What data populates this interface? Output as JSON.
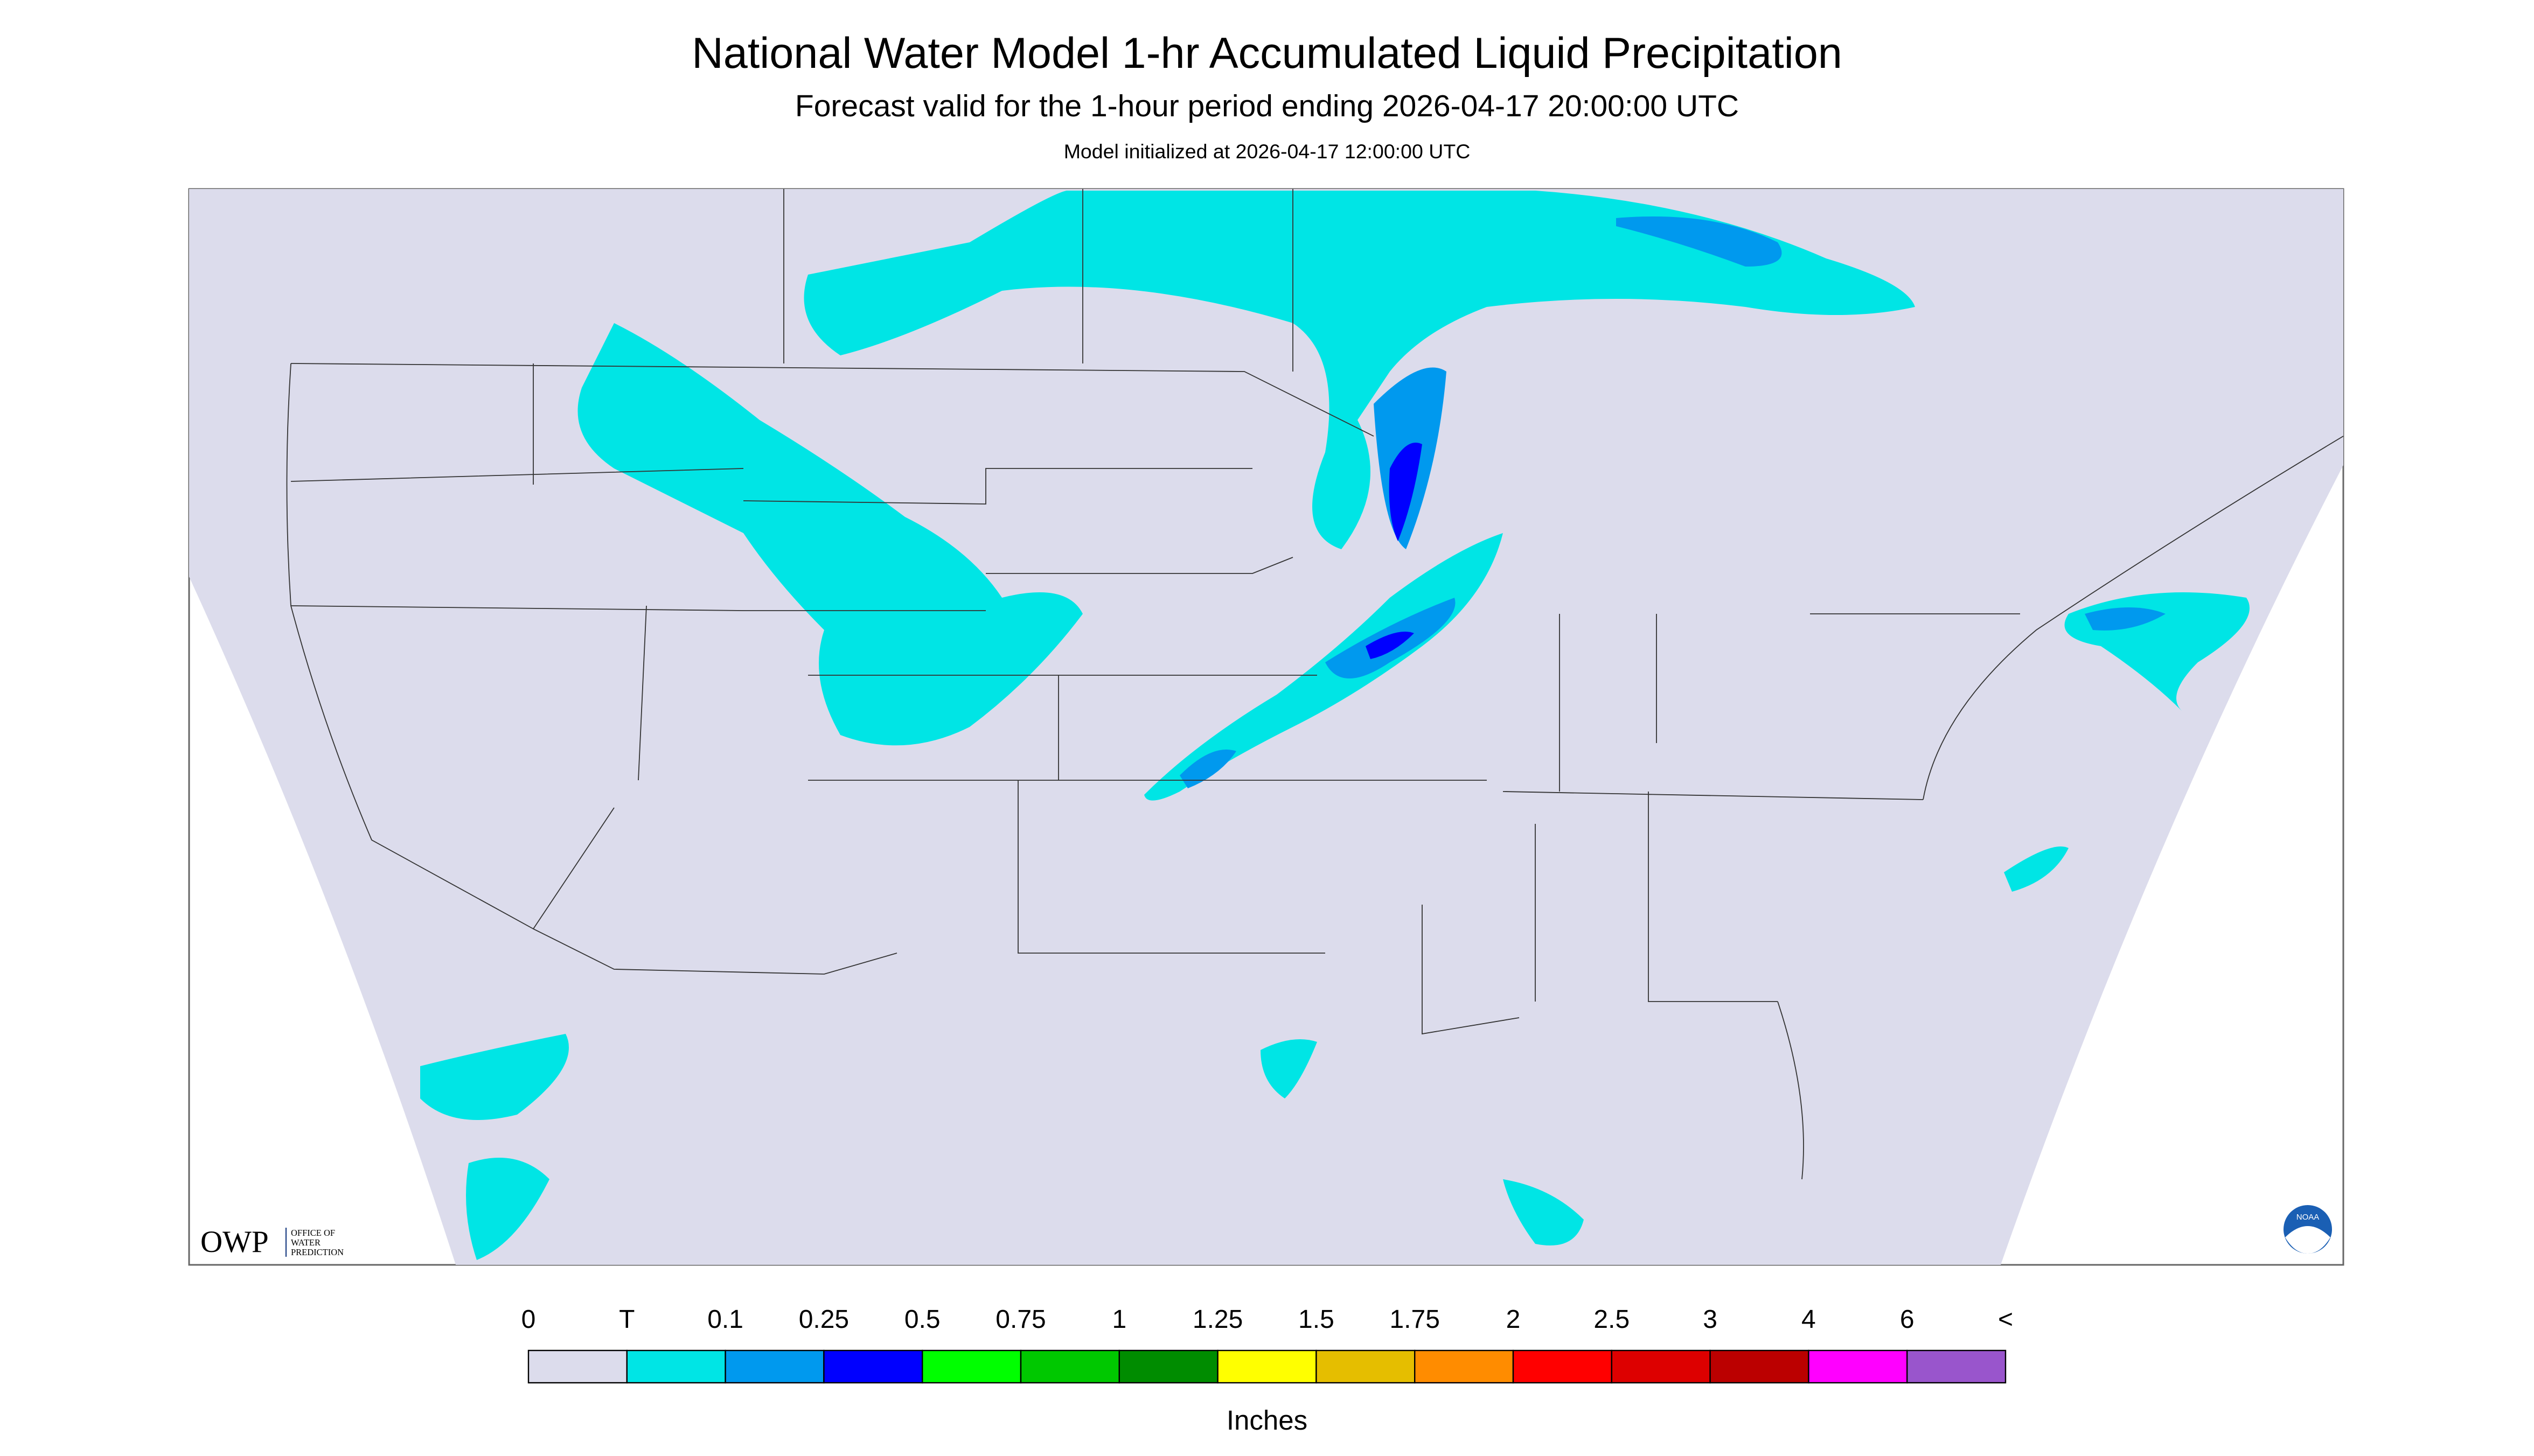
{
  "header": {
    "title": "National Water Model 1-hr Accumulated Liquid Precipitation",
    "subtitle": "Forecast valid for the 1-hour period ending 2026-04-17 20:00:00 UTC",
    "initialized": "Model initialized at 2026-04-17 12:00:00 UTC"
  },
  "logo": {
    "mark": "OWP",
    "line1": "OFFICE OF",
    "line2": "WATER",
    "line3": "PREDICTION",
    "badge": "NOAA"
  },
  "legend": {
    "labels": [
      "0",
      "T",
      "0.1",
      "0.25",
      "0.5",
      "0.75",
      "1",
      "1.25",
      "1.5",
      "1.75",
      "2",
      "2.5",
      "3",
      "4",
      "6",
      "<"
    ],
    "colors": [
      "#dcdcec",
      "#00e5e5",
      "#0099ee",
      "#0000ff",
      "#00ff00",
      "#00c800",
      "#008c00",
      "#ffff00",
      "#e5be00",
      "#ff8c00",
      "#ff0000",
      "#dd0000",
      "#bb0000",
      "#ff00ff",
      "#9955cc"
    ],
    "unit": "Inches"
  }
}
